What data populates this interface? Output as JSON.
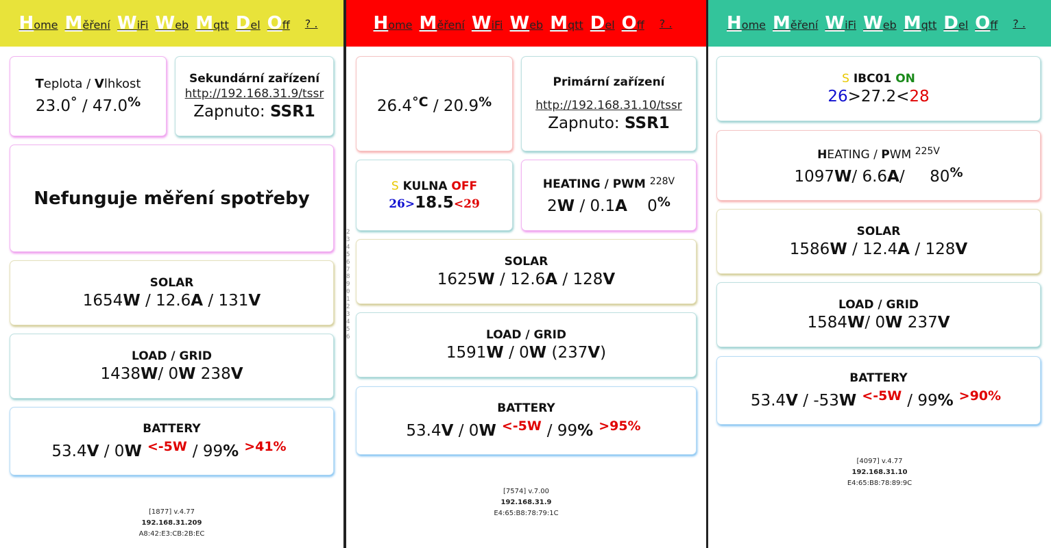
{
  "nav": [
    {
      "cap": "H",
      "rest": "ome"
    },
    {
      "cap": "M",
      "rest": "ěření"
    },
    {
      "cap": "W",
      "rest": "iFi"
    },
    {
      "cap": "W",
      "rest": "eb"
    },
    {
      "cap": "M",
      "rest": "qtt"
    },
    {
      "cap": "D",
      "rest": "el"
    },
    {
      "cap": "O",
      "rest": "ff"
    }
  ],
  "nav_help": "? .",
  "colors": {
    "panel1_header": "#e8e33a",
    "panel2_header": "#ff0000",
    "panel3_header": "#33c49b"
  },
  "ruler_digits": [
    "2",
    "3",
    "4",
    "5",
    "6",
    "7",
    "8",
    "9",
    "0",
    "1",
    "2",
    "3",
    "4",
    "5",
    "6"
  ],
  "panel1": {
    "temp": {
      "title_T": "T",
      "title_rest1": "eplota / ",
      "title_V": "V",
      "title_rest2": "lhkost",
      "temp": "23.0",
      "deg": "°",
      "sep": " / ",
      "hum": "47.0",
      "pct": "%"
    },
    "secondary": {
      "title": "Sekundární zařízení",
      "link": "http://192.168.31.9/tssr",
      "label": "Zapnuto: ",
      "value": "SSR1"
    },
    "message": "Nefunguje měření spotřeby",
    "solar": {
      "title": "SOLAR",
      "w": "1654",
      "a": "12.6",
      "v": "131"
    },
    "load": {
      "title": "LOAD / GRID",
      "load_w": "1438",
      "grid_w": "0",
      "grid_v": "238"
    },
    "battery": {
      "title": "BATTERY",
      "v": "53.4",
      "w": "0",
      "thr": "<-5W",
      "soc": "99",
      "soc_thr": ">41%"
    },
    "footer": {
      "id": "[1877] v.4.77",
      "ip": "192.168.31.209",
      "mac": "A8:42:E3:CB:2B:EC"
    }
  },
  "panel2": {
    "temp": {
      "temp": "26.4",
      "unit": "°C",
      "sep": " / ",
      "hum": "20.9",
      "pct": "%"
    },
    "primary": {
      "title": "Primární zařízení",
      "link": "http://192.168.31.10/tssr",
      "label": "Zapnuto: ",
      "value": "SSR1"
    },
    "kulna": {
      "s": "S",
      "name": " KULNA ",
      "state": "OFF",
      "low": "26>",
      "val": "18.5",
      "high": "<29"
    },
    "heating": {
      "title": "HEATING / PWM",
      "volt": "228V",
      "w": "2",
      "a": "0.1",
      "pwm": "0",
      "pct": "%"
    },
    "solar": {
      "title": "SOLAR",
      "w": "1625",
      "a": "12.6",
      "v": "128"
    },
    "load": {
      "title": "LOAD / GRID",
      "load_w": "1591",
      "grid_w": "0",
      "grid_v": "237"
    },
    "battery": {
      "title": "BATTERY",
      "v": "53.4",
      "w": "0",
      "thr": "<-5W",
      "soc": "99",
      "soc_thr": ">95%"
    },
    "footer": {
      "id": "[7574] v.7.00",
      "ip": "192.168.31.9",
      "mac": "E4:65:B8:78:79:1C"
    }
  },
  "panel3": {
    "ibc": {
      "s": "S",
      "name": " IBC01 ",
      "state": "ON",
      "low": "26",
      "val": ">27.2<",
      "high": "28"
    },
    "heating": {
      "title_H": "H",
      "title_rest1": "EATING / ",
      "title_P": "P",
      "title_rest2": "WM",
      "volt": "225V",
      "w": "1097",
      "a": "6.6",
      "pwm": "80",
      "pct": "%"
    },
    "solar": {
      "title": "SOLAR",
      "w": "1586",
      "a": "12.4",
      "v": "128"
    },
    "load": {
      "title": "LOAD / GRID",
      "load_w": "1584",
      "grid_w": "0",
      "grid_v": "237"
    },
    "battery": {
      "title": "BATTERY",
      "v": "53.4",
      "w": "-53",
      "thr": "<-5W",
      "soc": "99",
      "soc_thr": ">90%"
    },
    "footer": {
      "id": "[4097] v.4.77",
      "ip": "192.168.31.10",
      "mac": "E4:65:B8:78:89:9C"
    }
  }
}
